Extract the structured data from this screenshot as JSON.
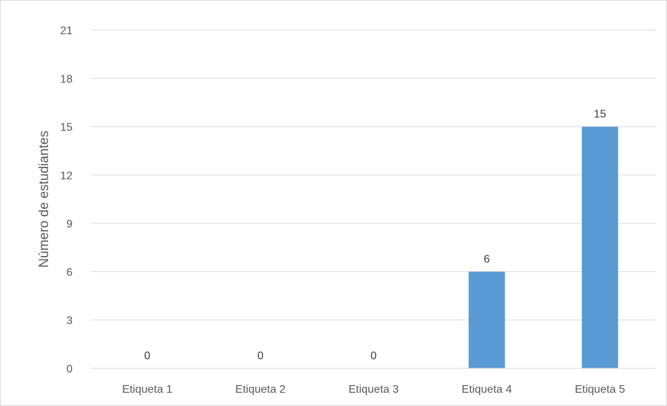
{
  "chart_data": {
    "type": "bar",
    "categories": [
      "Etiqueta 1",
      "Etiqueta 2",
      "Etiqueta 3",
      "Etiqueta 4",
      "Etiqueta 5"
    ],
    "values": [
      0,
      0,
      0,
      6,
      15
    ],
    "title": "",
    "xlabel": "",
    "ylabel": "Número de estudiantes",
    "ylim": [
      0,
      21
    ],
    "yticks": [
      0,
      3,
      6,
      9,
      12,
      15,
      18,
      21
    ],
    "grid": true,
    "legend": "none",
    "data_labels": true,
    "bar_color": "#5b9bd5"
  }
}
